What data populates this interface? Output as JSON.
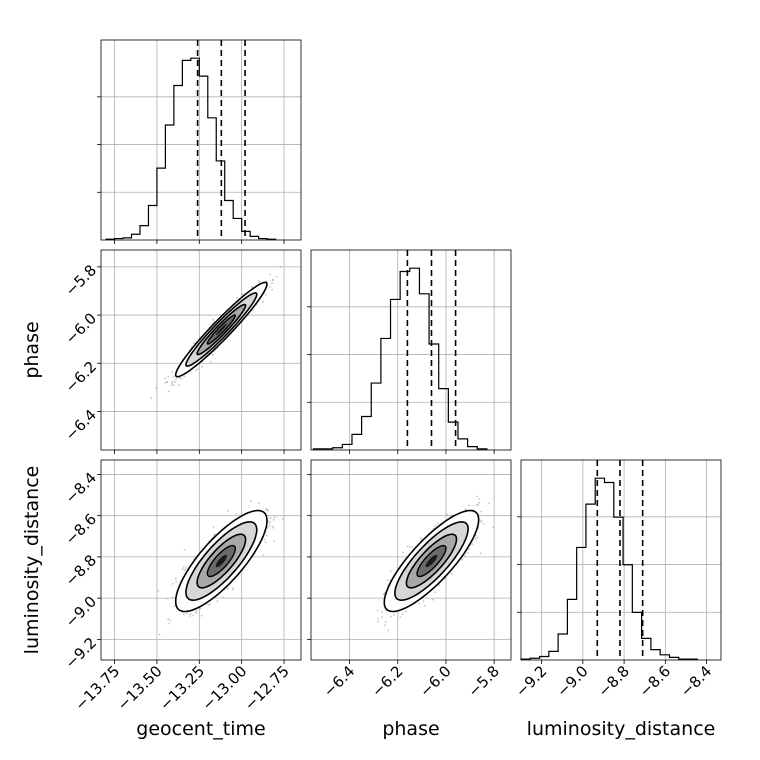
{
  "chart_data": {
    "type": "scatter",
    "plot_kind": "corner plot",
    "parameters": [
      {
        "name": "geocent_time",
        "label": "geocent_time",
        "range": [
          -13.83,
          -12.65
        ],
        "ticks": [
          -13.75,
          -13.5,
          -13.25,
          -13.0,
          -12.75
        ],
        "tick_labels": [
          "−13.75",
          "−13.50",
          "−13.25",
          "−13.00",
          "−12.75"
        ],
        "quantiles": [
          -13.26,
          -13.12,
          -12.98
        ],
        "median": -13.12
      },
      {
        "name": "phase",
        "label": "phase",
        "range": [
          -6.56,
          -5.73
        ],
        "ticks": [
          -6.4,
          -6.2,
          -6.0,
          -5.8
        ],
        "tick_labels": [
          "−6.4",
          "−6.2",
          "−6.0",
          "−5.8"
        ],
        "quantiles": [
          -6.16,
          -6.06,
          -5.96
        ],
        "median": -6.06
      },
      {
        "name": "luminosity_distance",
        "label": "luminosity_distance",
        "range": [
          -9.3,
          -8.33
        ],
        "ticks": [
          -9.2,
          -9.0,
          -8.8,
          -8.6,
          -8.4
        ],
        "tick_labels": [
          "−9.2",
          "−9.0",
          "−8.8",
          "−8.6",
          "−8.4"
        ],
        "quantiles": [
          -8.93,
          -8.82,
          -8.71
        ],
        "median": -8.82
      }
    ],
    "marginals": [
      {
        "parameter": "geocent_time",
        "bin_edges_start": -13.8,
        "bin_width": 0.05,
        "counts": [
          1,
          2,
          3,
          8,
          20,
          48,
          100,
          160,
          215,
          250,
          253,
          228,
          170,
          110,
          55,
          30,
          12,
          5,
          2,
          1
        ]
      },
      {
        "parameter": "phase",
        "bin_edges_start": -6.55,
        "bin_width": 0.04,
        "counts": [
          1,
          1,
          2,
          5,
          14,
          30,
          60,
          100,
          135,
          160,
          163,
          140,
          95,
          55,
          25,
          10,
          3,
          1
        ]
      },
      {
        "parameter": "luminosity_distance",
        "bin_edges_start": -9.3,
        "bin_width": 0.045,
        "counts": [
          1,
          2,
          4,
          10,
          30,
          70,
          130,
          180,
          210,
          205,
          165,
          110,
          55,
          25,
          12,
          6,
          3,
          1,
          1
        ]
      }
    ],
    "joint": [
      {
        "x": "geocent_time",
        "y": "phase",
        "mean": [
          -13.12,
          -6.06
        ],
        "sigma": [
          0.11,
          0.08
        ],
        "correlation": 0.96
      },
      {
        "x": "geocent_time",
        "y": "luminosity_distance",
        "mean": [
          -13.12,
          -8.82
        ],
        "sigma": [
          0.11,
          0.1
        ],
        "correlation": 0.8
      },
      {
        "x": "phase",
        "y": "luminosity_distance",
        "mean": [
          -6.06,
          -8.82
        ],
        "sigma": [
          0.08,
          0.1
        ],
        "correlation": 0.82
      }
    ],
    "grid": true
  }
}
